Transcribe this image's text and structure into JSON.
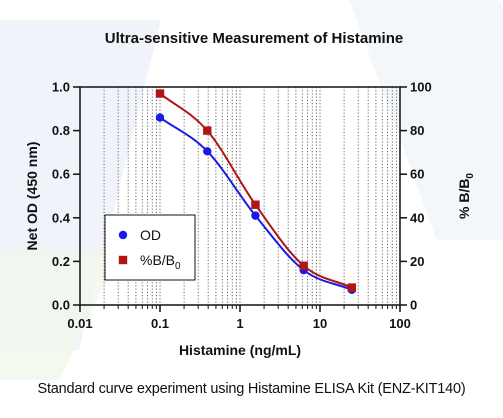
{
  "caption": "Standard curve experiment using Histamine ELISA Kit (ENZ-KIT140)",
  "chart_data": {
    "type": "line",
    "title": "Ultra-sensitive Measurement of Histamine",
    "xlabel": "Histamine (ng/mL)",
    "ylabel_left": "Net OD (450 nm)",
    "ylabel_right_base": "% B/B",
    "ylabel_right_sub": "0",
    "xscale": "log",
    "xlim": [
      0.01,
      100
    ],
    "ylim_left": [
      0,
      1.0
    ],
    "ylim_right": [
      0,
      100
    ],
    "xticks": [
      "0.01",
      "0.1",
      "1",
      "10",
      "100"
    ],
    "yticks_left": [
      "0.0",
      "0.2",
      "0.4",
      "0.6",
      "0.8",
      "1.0"
    ],
    "yticks_right": [
      "0",
      "20",
      "40",
      "60",
      "80",
      "100"
    ],
    "grid": "vertical dotted at log minor ticks",
    "legend_position": "lower-left",
    "series": [
      {
        "name": "OD",
        "axis": "left",
        "marker": "circle",
        "color": "#1a1ae6",
        "x": [
          0.1,
          0.39,
          1.56,
          6.25,
          25
        ],
        "y": [
          0.86,
          0.705,
          0.41,
          0.16,
          0.07
        ]
      },
      {
        "name": "%B/B",
        "name_sub": "0",
        "axis": "right",
        "marker": "square",
        "color": "#b01414",
        "x": [
          0.1,
          0.39,
          1.56,
          6.25,
          25
        ],
        "y": [
          97,
          80,
          46,
          18,
          8
        ]
      }
    ]
  }
}
